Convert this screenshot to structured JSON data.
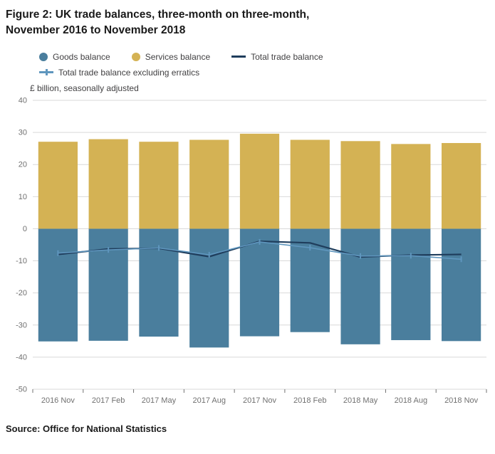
{
  "figure": {
    "title_line1": "Figure 2: UK trade balances, three-month on three-month,",
    "title_line2": "November 2016 to November 2018",
    "subtitle": "£ billion, seasonally adjusted",
    "source": "Source: Office for National Statistics"
  },
  "legend": {
    "items": [
      {
        "label": "Goods balance",
        "type": "circle",
        "color": "#4a7e9d"
      },
      {
        "label": "Services balance",
        "type": "circle",
        "color": "#d4b254"
      },
      {
        "label": "Total trade balance",
        "type": "line",
        "color": "#1f3d5c"
      },
      {
        "label": "Total trade balance excluding erratics",
        "type": "line-marker",
        "color": "#5f96be"
      }
    ]
  },
  "chart_data": {
    "type": "bar",
    "title": "Figure 2: UK trade balances, three-month on three-month, November 2016 to November 2018",
    "xlabel": "",
    "ylabel": "£ billion, seasonally adjusted",
    "categories": [
      "2016 Nov",
      "2017 Feb",
      "2017 May",
      "2017 Aug",
      "2017 Nov",
      "2018 Feb",
      "2018 May",
      "2018 Aug",
      "2018 Nov"
    ],
    "series": [
      {
        "name": "Goods balance",
        "type": "bar",
        "color": "#4a7e9d",
        "values": [
          -35.1,
          -34.9,
          -33.6,
          -37.0,
          -33.5,
          -32.2,
          -36.0,
          -34.7,
          -35.0
        ]
      },
      {
        "name": "Services balance",
        "type": "bar",
        "color": "#d4b254",
        "values": [
          27.1,
          27.9,
          27.1,
          27.7,
          29.6,
          27.7,
          27.3,
          26.4,
          26.7
        ]
      },
      {
        "name": "Total trade balance",
        "type": "line",
        "color": "#1f3d5c",
        "width": 2.2,
        "values": [
          -8.0,
          -6.3,
          -6.1,
          -8.7,
          -3.9,
          -4.4,
          -8.8,
          -8.2,
          -8.0
        ]
      },
      {
        "name": "Total trade balance excluding erratics",
        "type": "line",
        "marker": "tick",
        "color": "#5f96be",
        "width": 1.6,
        "values": [
          -7.6,
          -6.6,
          -6.0,
          -8.1,
          -4.1,
          -5.9,
          -8.5,
          -8.4,
          -9.5
        ]
      }
    ],
    "ylim": [
      -50,
      40
    ],
    "yticks": [
      40,
      30,
      20,
      10,
      0,
      -10,
      -20,
      -30,
      -40,
      -50
    ],
    "grid": true,
    "grid_color": "#d9d9d9",
    "axis_text_color": "#707070",
    "legend_position": "top"
  }
}
